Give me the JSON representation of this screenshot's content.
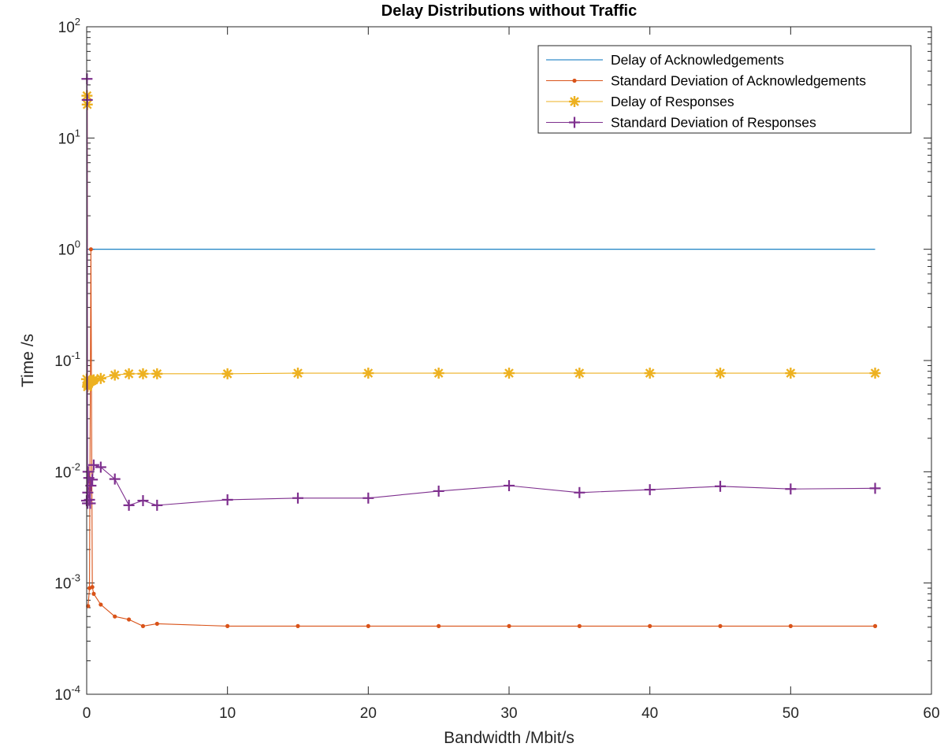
{
  "chart_data": {
    "type": "line",
    "title": "Delay Distributions without Traffic",
    "xlabel": "Bandwidth /Mbit/s",
    "ylabel": "Time /s",
    "xlim": [
      0,
      60
    ],
    "ylim": [
      0.0001,
      100
    ],
    "yscale": "log",
    "grid": false,
    "legend_position": "top-right",
    "x_ticks": [
      0,
      10,
      20,
      30,
      40,
      50,
      60
    ],
    "x_tick_labels": [
      "0",
      "10",
      "20",
      "30",
      "40",
      "50",
      "60"
    ],
    "y_ticks": [
      0.0001,
      0.001,
      0.01,
      0.1,
      1,
      10,
      100
    ],
    "y_tick_labels": [
      {
        "base": "10",
        "exp": "-4"
      },
      {
        "base": "10",
        "exp": "-3"
      },
      {
        "base": "10",
        "exp": "-2"
      },
      {
        "base": "10",
        "exp": "-1"
      },
      {
        "base": "10",
        "exp": "0"
      },
      {
        "base": "10",
        "exp": "1"
      },
      {
        "base": "10",
        "exp": "2"
      }
    ],
    "series": [
      {
        "name": "Delay of Acknowledgements",
        "color": "#0072BD",
        "marker": "none",
        "points": [
          [
            0,
            1
          ],
          [
            56,
            1
          ]
        ]
      },
      {
        "name": "Standard Deviation of Acknowledgements",
        "color": "#D95319",
        "marker": "dot",
        "points": [
          [
            0.1,
            0.00062
          ],
          [
            0.2,
            0.0009
          ],
          [
            0.3,
            1.0
          ],
          [
            0.4,
            0.00092
          ],
          [
            0.5,
            0.0008
          ],
          [
            1,
            0.00064
          ],
          [
            2,
            0.0005
          ],
          [
            3,
            0.00047
          ],
          [
            4,
            0.00041
          ],
          [
            5,
            0.00043
          ],
          [
            10,
            0.00041
          ],
          [
            15,
            0.00041
          ],
          [
            20,
            0.00041
          ],
          [
            25,
            0.00041
          ],
          [
            30,
            0.00041
          ],
          [
            35,
            0.00041
          ],
          [
            40,
            0.00041
          ],
          [
            45,
            0.00041
          ],
          [
            50,
            0.00041
          ],
          [
            56,
            0.00041
          ]
        ]
      },
      {
        "name": "Delay of Responses",
        "color": "#EDB120",
        "marker": "asterisk",
        "points": [
          [
            0,
            0.068
          ],
          [
            0.02,
            24
          ],
          [
            0.04,
            20
          ],
          [
            0.06,
            0.058
          ],
          [
            0.08,
            0.06
          ],
          [
            0.1,
            0.062
          ],
          [
            0.15,
            0.063
          ],
          [
            0.2,
            0.064
          ],
          [
            0.3,
            0.065
          ],
          [
            0.4,
            0.066
          ],
          [
            0.5,
            0.067
          ],
          [
            1,
            0.069
          ],
          [
            2,
            0.074
          ],
          [
            3,
            0.076
          ],
          [
            4,
            0.076
          ],
          [
            5,
            0.076
          ],
          [
            10,
            0.076
          ],
          [
            15,
            0.077
          ],
          [
            20,
            0.077
          ],
          [
            25,
            0.077
          ],
          [
            30,
            0.077
          ],
          [
            35,
            0.077
          ],
          [
            40,
            0.077
          ],
          [
            45,
            0.077
          ],
          [
            50,
            0.077
          ],
          [
            56,
            0.077
          ]
        ]
      },
      {
        "name": "Standard Deviation of Responses",
        "color": "#7E2F8E",
        "marker": "plus",
        "points": [
          [
            0,
            0.0055
          ],
          [
            0.02,
            34
          ],
          [
            0.04,
            22
          ],
          [
            0.06,
            0.0052
          ],
          [
            0.08,
            0.0065
          ],
          [
            0.1,
            0.01
          ],
          [
            0.15,
            0.0088
          ],
          [
            0.2,
            0.0056
          ],
          [
            0.25,
            0.0052
          ],
          [
            0.3,
            0.0075
          ],
          [
            0.4,
            0.0085
          ],
          [
            0.5,
            0.0115
          ],
          [
            1,
            0.011
          ],
          [
            2,
            0.0086
          ],
          [
            3,
            0.005
          ],
          [
            4,
            0.0055
          ],
          [
            5,
            0.005
          ],
          [
            10,
            0.0056
          ],
          [
            15,
            0.0058
          ],
          [
            20,
            0.0058
          ],
          [
            25,
            0.0067
          ],
          [
            30,
            0.0075
          ],
          [
            35,
            0.0065
          ],
          [
            40,
            0.0069
          ],
          [
            45,
            0.0074
          ],
          [
            50,
            0.007
          ],
          [
            56,
            0.0071
          ]
        ]
      }
    ]
  }
}
